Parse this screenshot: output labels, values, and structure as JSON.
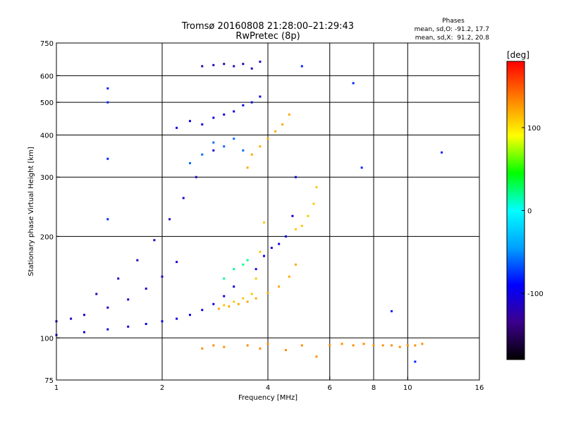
{
  "chart_data": {
    "type": "scatter",
    "title": "Tromsø 20160808 21:28:00–21:29:43",
    "subtitle": "RwPretec (8p)",
    "phases_header": "Phases",
    "phases_o": "mean, sd,O: -91.2, 17.7",
    "phases_x": "mean, sd,X:  91.2, 20.8",
    "xlabel": "Frequency [MHz]",
    "ylabel": "Stationary phase Virtual Height [km]",
    "xscale": "log",
    "yscale": "log",
    "xlim": [
      1,
      16
    ],
    "ylim": [
      75,
      750
    ],
    "grid": true,
    "xticks": [
      1,
      2,
      4,
      6,
      8,
      10,
      16
    ],
    "xtick_labels": [
      "1",
      "2",
      "4",
      "6",
      "8",
      "10",
      "16"
    ],
    "x_gridlines": [
      2,
      4,
      6,
      8,
      10
    ],
    "yticks": [
      75,
      100,
      200,
      300,
      400,
      500,
      600,
      750
    ],
    "ytick_labels": [
      "75",
      "100",
      "200",
      "300",
      "400",
      "500",
      "600",
      "750"
    ],
    "y_gridlines": [
      100,
      200,
      300,
      400,
      500,
      600
    ],
    "colorbar": {
      "label": "[deg]",
      "range": [
        -180,
        180
      ],
      "ticks": [
        100,
        0,
        -100
      ],
      "tick_labels": [
        "100",
        "0",
        "-100"
      ],
      "stops": [
        "#000000",
        "#3c008c",
        "#0000ff",
        "#00a0ff",
        "#00ffff",
        "#00ff00",
        "#ffff00",
        "#ff8000",
        "#ff0000"
      ]
    },
    "series": [
      {
        "x": [
          1.0,
          1.2,
          1.4,
          1.6,
          1.8,
          2.0,
          2.2,
          2.4,
          2.6,
          2.8,
          3.0,
          3.2
        ],
        "y": [
          102,
          104,
          106,
          108,
          110,
          112,
          114,
          117,
          121,
          126,
          133,
          142
        ],
        "phase": -100
      },
      {
        "x": [
          1.0,
          1.1,
          1.2,
          1.4,
          1.6,
          1.8,
          2.0,
          2.2
        ],
        "y": [
          112,
          114,
          117,
          123,
          130,
          140,
          152,
          168
        ],
        "phase": -110
      },
      {
        "x": [
          1.3,
          1.5,
          1.7,
          1.9,
          2.1,
          2.3,
          2.5,
          2.8
        ],
        "y": [
          135,
          150,
          170,
          195,
          225,
          260,
          300,
          360
        ],
        "phase": -115
      },
      {
        "x": [
          2.2,
          2.4,
          2.6,
          2.8,
          3.0,
          3.2,
          3.4,
          3.6,
          3.8
        ],
        "y": [
          420,
          440,
          430,
          450,
          460,
          470,
          490,
          500,
          520
        ],
        "phase": -100
      },
      {
        "x": [
          2.4,
          2.6,
          2.8,
          3.0,
          3.2,
          3.4
        ],
        "y": [
          330,
          350,
          380,
          370,
          390,
          360
        ],
        "phase": -60
      },
      {
        "x": [
          3.0,
          3.2,
          3.4,
          3.6,
          3.7,
          3.8,
          3.9
        ],
        "y": [
          125,
          128,
          131,
          135,
          150,
          180,
          220
        ],
        "phase": 110
      },
      {
        "x": [
          2.9,
          3.1,
          3.3,
          3.5,
          3.7,
          4.0,
          4.3,
          4.6,
          4.8
        ],
        "y": [
          122,
          124,
          126,
          128,
          131,
          136,
          142,
          152,
          165
        ],
        "phase": 120
      },
      {
        "x": [
          3.7,
          3.9,
          4.1,
          4.3,
          4.5,
          4.7,
          4.8
        ],
        "y": [
          160,
          175,
          185,
          190,
          200,
          230,
          300
        ],
        "phase": -100
      },
      {
        "x": [
          4.8,
          5.0,
          5.2,
          5.4,
          5.5
        ],
        "y": [
          210,
          215,
          230,
          250,
          280
        ],
        "phase": 110
      },
      {
        "x": [
          3.5,
          3.6,
          3.8,
          4.0,
          4.2,
          4.4,
          4.6
        ],
        "y": [
          320,
          350,
          370,
          390,
          410,
          430,
          460
        ],
        "phase": 120
      },
      {
        "x": [
          3.0,
          3.2,
          3.4,
          3.5
        ],
        "y": [
          150,
          160,
          165,
          170
        ],
        "phase": 20
      },
      {
        "x": [
          2.6,
          2.8,
          3.0,
          3.2,
          3.4,
          3.6,
          3.8
        ],
        "y": [
          640,
          645,
          650,
          640,
          650,
          630,
          660
        ],
        "phase": -120
      },
      {
        "x": [
          2.6,
          2.8,
          3.0,
          3.5,
          3.8,
          4.0,
          4.5,
          5.0,
          5.5,
          6.0,
          6.5,
          7.0,
          7.5,
          8.0,
          8.5,
          9.0,
          9.5,
          10.0,
          10.5,
          11.0
        ],
        "y": [
          93,
          95,
          94,
          95,
          93,
          96,
          92,
          95,
          88,
          95,
          96,
          95,
          96,
          95,
          95,
          95,
          94,
          95,
          95,
          96
        ],
        "phase": 130
      },
      {
        "x": [
          1.4,
          1.4,
          1.4,
          1.4,
          5.0,
          7.0,
          7.4,
          9.0,
          12.5,
          10.5
        ],
        "y": [
          550,
          500,
          340,
          225,
          640,
          570,
          320,
          120,
          355,
          85
        ],
        "phase": -80
      }
    ]
  }
}
